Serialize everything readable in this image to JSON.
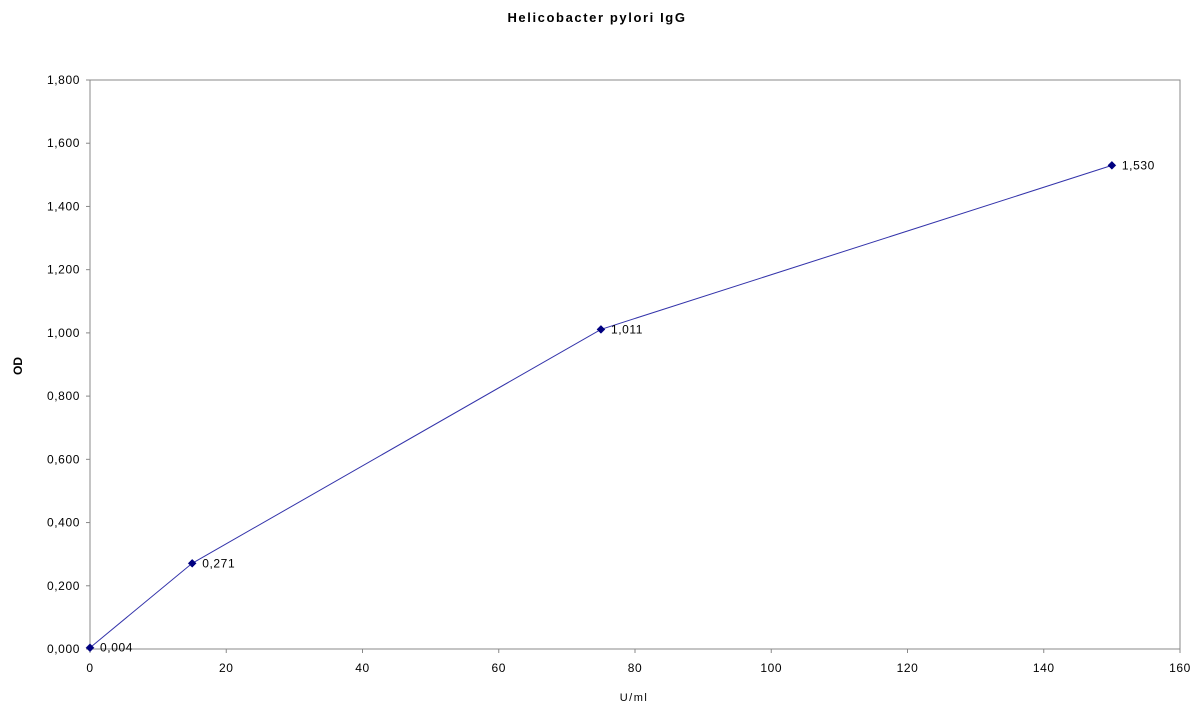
{
  "chart_data": {
    "type": "line",
    "title": "Helicobacter pylori IgG",
    "xlabel": "U/ml",
    "ylabel": "OD",
    "xlim": [
      0,
      160
    ],
    "ylim": [
      0,
      1.8
    ],
    "x_ticks": [
      "0",
      "20",
      "40",
      "60",
      "80",
      "100",
      "120",
      "140",
      "160"
    ],
    "y_ticks": [
      "0,000",
      "0,200",
      "0,400",
      "0,600",
      "0,800",
      "1,000",
      "1,200",
      "1,400",
      "1,600",
      "1,800"
    ],
    "grid": false,
    "legend": "none",
    "series": [
      {
        "color": "#3333aa",
        "marker_color": "#000080",
        "marker": "diamond",
        "x": [
          0,
          15,
          75,
          150
        ],
        "y": [
          0.004,
          0.271,
          1.011,
          1.53
        ],
        "labels": [
          "0,004",
          "0,271",
          "1,011",
          "1,530"
        ]
      }
    ]
  }
}
